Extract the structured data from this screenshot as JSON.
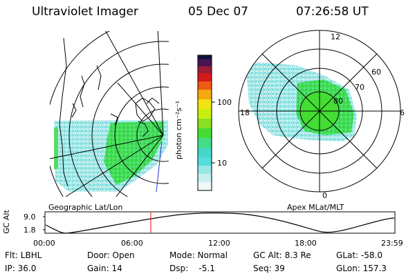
{
  "header": {
    "instrument": "Ultraviolet Imager",
    "date": "05 Dec 07",
    "time": "07:26:58 UT"
  },
  "colorbar": {
    "label": "photon cm⁻²s⁻¹",
    "ticks": [
      "100",
      "10"
    ],
    "scale": "log"
  },
  "geo_panel": {
    "label": "Geographic Lat/Lon"
  },
  "apex_panel": {
    "label": "Apex MLat/MLT",
    "mlt_labels": [
      "12",
      "18",
      "6",
      "0"
    ],
    "mlat_labels": [
      "60",
      "70",
      "80"
    ]
  },
  "orbit_plot": {
    "ylabel": "GC Alt",
    "yticks": [
      "9.0",
      "1.8"
    ],
    "xticks": [
      "00:00",
      "06:00",
      "12:00",
      "18:00",
      "23:59"
    ],
    "current_time_marker": "07:27",
    "marker_color": "#ff0000"
  },
  "info": {
    "filter": "Flt: LBHL",
    "ip": "IP: 36.0",
    "door": "Door: Open",
    "gain": "Gain: 14",
    "mode": "Mode: Normal",
    "dsp": "Dsp:    -5.1",
    "gc_alt": "GC Alt: 8.3 Re",
    "seq": "Seq: 39",
    "glat": "GLat: -58.0",
    "glon": "GLon: 157.3"
  }
}
